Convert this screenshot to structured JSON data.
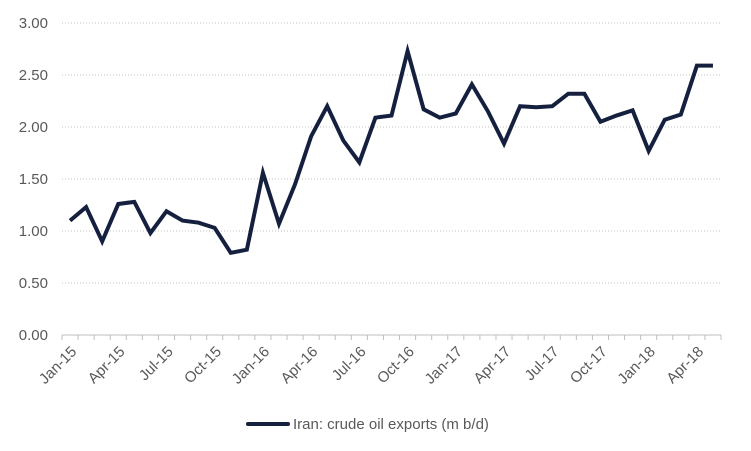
{
  "chart_data": {
    "type": "line",
    "title": "",
    "xlabel": "",
    "ylabel": "",
    "ylim": [
      0,
      3
    ],
    "y_ticks": [
      "0.00",
      "0.50",
      "1.00",
      "1.50",
      "2.00",
      "2.50",
      "3.00"
    ],
    "x_tick_labels": [
      "Jan-15",
      "Apr-15",
      "Jul-15",
      "Oct-15",
      "Jan-16",
      "Apr-16",
      "Jul-16",
      "Oct-16",
      "Jan-17",
      "Apr-17",
      "Jul-17",
      "Oct-17",
      "Jan-18",
      "Apr-18"
    ],
    "grid": "horizontal dotted",
    "legend_position": "bottom-center",
    "categories": [
      "Jan-15",
      "Feb-15",
      "Mar-15",
      "Apr-15",
      "May-15",
      "Jun-15",
      "Jul-15",
      "Aug-15",
      "Sep-15",
      "Oct-15",
      "Nov-15",
      "Dec-15",
      "Jan-16",
      "Feb-16",
      "Mar-16",
      "Apr-16",
      "May-16",
      "Jun-16",
      "Jul-16",
      "Aug-16",
      "Sep-16",
      "Oct-16",
      "Nov-16",
      "Dec-16",
      "Jan-17",
      "Feb-17",
      "Mar-17",
      "Apr-17",
      "May-17",
      "Jun-17",
      "Jul-17",
      "Aug-17",
      "Sep-17",
      "Oct-17",
      "Nov-17",
      "Dec-17",
      "Jan-18",
      "Feb-18",
      "Mar-18",
      "Apr-18",
      "May-18"
    ],
    "series": [
      {
        "name": "Iran: crude oil exports (m b/d)",
        "color": "#15203f",
        "values": [
          1.1,
          1.23,
          0.9,
          1.26,
          1.28,
          0.98,
          1.19,
          1.1,
          1.08,
          1.03,
          0.79,
          0.82,
          1.56,
          1.07,
          1.45,
          1.91,
          2.2,
          1.87,
          1.66,
          2.09,
          2.11,
          2.73,
          2.17,
          2.09,
          2.13,
          2.41,
          2.15,
          1.84,
          2.2,
          2.19,
          2.2,
          2.32,
          2.32,
          2.05,
          2.11,
          2.16,
          1.77,
          2.07,
          2.12,
          2.59,
          2.59
        ]
      }
    ]
  },
  "legend": {
    "items": [
      {
        "label": "Iran: crude oil exports (m b/d)",
        "color": "#15203f"
      }
    ]
  },
  "colors": {
    "line": "#15203f",
    "grid": "#bfbfbf",
    "axis": "#bfbfbf",
    "text": "#595959"
  }
}
